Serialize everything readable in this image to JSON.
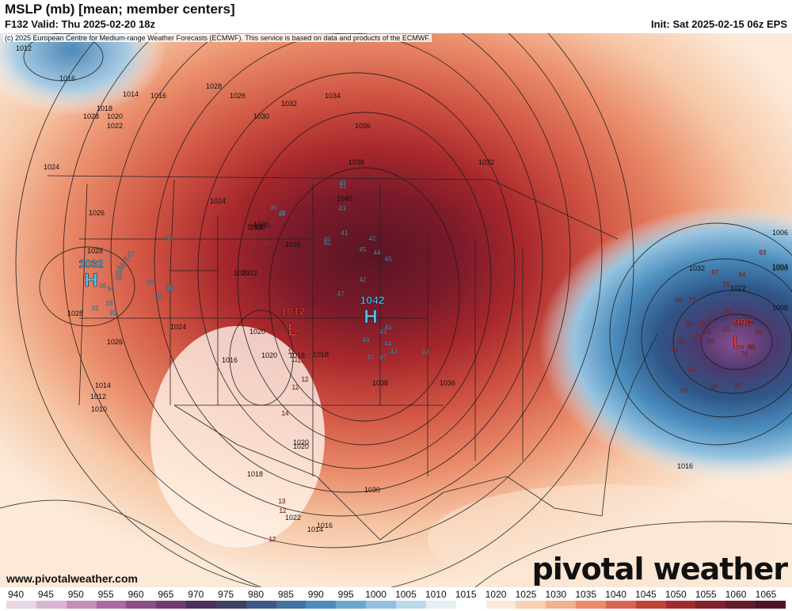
{
  "header": {
    "title": "MSLP (mb) [mean; member centers]",
    "valid": "F132 Valid: Thu 2025-02-20 18z",
    "init": "Init: Sat 2025-02-15 06z EPS",
    "copyright": "(c) 2025 European Centre for Medium-range Weather Forecasts (ECMWF). This service is based on data and products of the ECMWF."
  },
  "footer": {
    "url": "www.pivotalweather.com",
    "logo": "pivotal weather"
  },
  "centers": [
    {
      "type": "H",
      "value": "1032",
      "color": "#4fc3f7"
    },
    {
      "type": "H",
      "value": "1042",
      "color": "#4fc3f7"
    },
    {
      "type": "L",
      "value": "1012",
      "color": "#e53935"
    },
    {
      "type": "L",
      "value": "998",
      "color": "#e53935"
    }
  ],
  "isobar_labels": [
    "1012",
    "1016",
    "1014",
    "1016",
    "1018",
    "1020",
    "1022",
    "1028",
    "1024",
    "1026",
    "1028",
    "1030",
    "1032",
    "1034",
    "1036",
    "1038",
    "1040",
    "1038",
    "1036",
    "1032",
    "1030",
    "1028",
    "1026",
    "1024",
    "1022",
    "1020",
    "1018",
    "1016",
    "1014",
    "1012",
    "1010",
    "1008",
    "1006",
    "1004",
    "1000",
    "1032",
    "1024",
    "1026",
    "1030",
    "1022",
    "1028",
    "1026",
    "1024",
    "1020",
    "1018",
    "1020",
    "1022",
    "1018",
    "1016",
    "1014",
    "1016",
    "1022",
    "1030",
    "1020"
  ],
  "member_values": [
    "36",
    "40",
    "37",
    "35",
    "34",
    "36",
    "38",
    "35",
    "34",
    "33",
    "32",
    "32",
    "35",
    "36",
    "35",
    "36",
    "39",
    "35",
    "40",
    "45",
    "49",
    "41",
    "43",
    "41",
    "42",
    "44",
    "45",
    "45",
    "45",
    "47",
    "45",
    "42",
    "41",
    "46",
    "43",
    "44",
    "42",
    "47",
    "42",
    "05",
    "38",
    "09",
    "08",
    "12",
    "11",
    "10",
    "10",
    "09",
    "12",
    "14",
    "12",
    "13",
    "12",
    "12",
    "73",
    "81",
    "84",
    "88",
    "82",
    "90",
    "95",
    "94",
    "88",
    "89",
    "98",
    "86",
    "66",
    "00",
    "04",
    "95",
    "96",
    "63",
    "67",
    "64",
    "71",
    "76",
    "83",
    "85",
    "89"
  ],
  "colorbar": {
    "labels": [
      "940",
      "945",
      "950",
      "955",
      "960",
      "965",
      "970",
      "975",
      "980",
      "985",
      "990",
      "995",
      "1000",
      "1005",
      "1010",
      "1015",
      "1020",
      "1025",
      "1030",
      "1035",
      "1040",
      "1045",
      "1050",
      "1055",
      "1060",
      "1065"
    ],
    "colors": [
      "#e8d6e6",
      "#d8b6d3",
      "#c28fbb",
      "#a86aa0",
      "#8c4d88",
      "#6e3a72",
      "#4c2f5a",
      "#3f3f66",
      "#3d5a87",
      "#4173a4",
      "#4c8cbd",
      "#6aa7cf",
      "#92c1df",
      "#bcd9eb",
      "#e3eef5",
      "#ffffff",
      "#fbe9d7",
      "#f8d2b2",
      "#f2b08b",
      "#e98b6a",
      "#d9654d",
      "#c34236",
      "#a42a2d",
      "#842029",
      "#661a2a",
      "#4f1525"
    ]
  }
}
